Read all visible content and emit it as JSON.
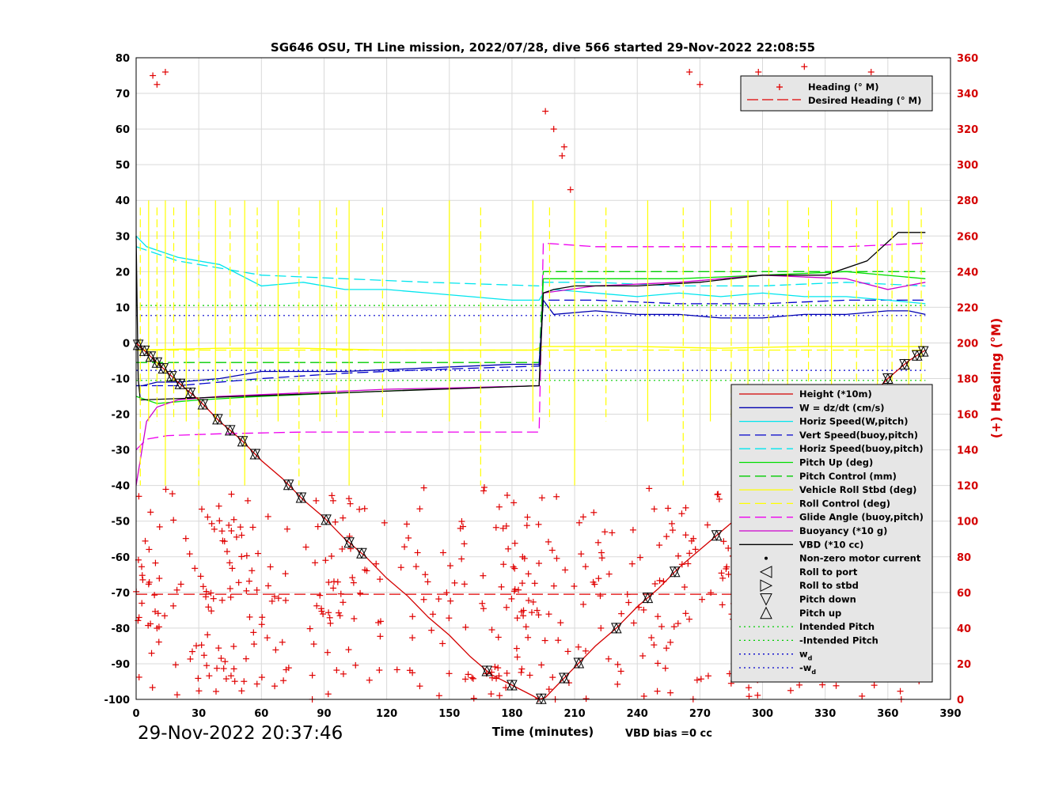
{
  "chart_data": {
    "type": "line",
    "title": "SG646 OSU, TH Line mission, 2022/07/28, dive 566 started 29-Nov-2022 22:08:55",
    "xlabel": "Time (minutes)",
    "ylabel_right": "(+) Heading (°M)",
    "footer_left": "29-Nov-2022 20:37:46",
    "footer_right": "VBD bias =0 cc",
    "xlim": [
      0,
      390
    ],
    "ylim": [
      -100,
      80
    ],
    "ylim_right": [
      0,
      360
    ],
    "grid": true,
    "x_ticks": [
      "0",
      "30",
      "60",
      "90",
      "120",
      "150",
      "180",
      "210",
      "240",
      "270",
      "300",
      "330",
      "360",
      "390"
    ],
    "y_ticks": [
      "80",
      "70",
      "60",
      "50",
      "40",
      "30",
      "20",
      "10",
      "0",
      "-10",
      "-20",
      "-30",
      "-40",
      "-50",
      "-60",
      "-70",
      "-80",
      "-90",
      "-100"
    ],
    "y_ticks_right": [
      "360",
      "340",
      "320",
      "300",
      "280",
      "260",
      "240",
      "220",
      "200",
      "180",
      "160",
      "140",
      "120",
      "100",
      "80",
      "60",
      "40",
      "20",
      "0"
    ],
    "colors": {
      "height": "#d40000",
      "w": "#0000b0",
      "horiz_w": "#00e5ee",
      "vert_buoy": "#0000cc",
      "horiz_buoy": "#00e5ee",
      "pitch": "#00dd00",
      "pitch_ctl": "#00cc00",
      "roll": "#ffff00",
      "roll_ctl": "#ffff00",
      "glide": "#ee00ee",
      "buoy": "#cc00cc",
      "vbd": "#000000",
      "heading": "#e00000"
    },
    "legend_top": {
      "placement": "top-right",
      "items": [
        "Heading (° M)",
        "Desired Heading (° M)"
      ]
    },
    "legend_main": {
      "placement": "bottom-right",
      "items": [
        "Height (*10m)",
        "W = dz/dt (cm/s)",
        "Horiz Speed(W,pitch)",
        "Vert Speed(buoy,pitch)",
        "Horiz Speed(buoy,pitch)",
        "Pitch Up (deg)",
        "Pitch Control (mm)",
        "Vehicle Roll Stbd (deg)",
        "Roll Control (deg)",
        "Glide Angle (buoy,pitch)",
        "Buoyancy (*10 g)",
        "VBD (*10 cc)",
        "Non-zero motor current",
        "Roll to port",
        "Roll to stbd",
        "Pitch down",
        "Pitch up",
        "Intended Pitch",
        "-Intended Pitch",
        "w_d",
        "-w_d"
      ],
      "wd_main": "w",
      "wd_sub": "d"
    },
    "series": [
      {
        "name": "Height (*10m)",
        "x": [
          0,
          10,
          20,
          30,
          40,
          50,
          60,
          70,
          80,
          90,
          100,
          110,
          120,
          130,
          140,
          150,
          160,
          170,
          180,
          190,
          193,
          196,
          200,
          210,
          220,
          230,
          240,
          250,
          260,
          270,
          280,
          290,
          300,
          310,
          320,
          330,
          340,
          350,
          360,
          370,
          378
        ],
        "values": [
          0,
          -5.5,
          -11,
          -16,
          -22,
          -27,
          -33,
          -38,
          -44,
          -49,
          -55,
          -60,
          -66,
          -71,
          -77,
          -82,
          -88,
          -93,
          -96,
          -99,
          -100,
          -99.5,
          -97,
          -91,
          -85,
          -80,
          -74,
          -69,
          -63,
          -58,
          -53,
          -48,
          -43,
          -37,
          -32,
          -27,
          -21,
          -16,
          -10,
          -5,
          -2
        ]
      },
      {
        "name": "W = dz/dt (cm/s)",
        "x": [
          0,
          3,
          10,
          20,
          40,
          60,
          80,
          100,
          120,
          140,
          160,
          180,
          193,
          195,
          200,
          220,
          240,
          260,
          280,
          300,
          320,
          340,
          360,
          370,
          378
        ],
        "values": [
          -12,
          -12,
          -11,
          -11,
          -10,
          -8,
          -8,
          -8,
          -7.5,
          -7,
          -6.5,
          -6,
          -6,
          12,
          8,
          9,
          8,
          8,
          7,
          7,
          8,
          8,
          9,
          9,
          8
        ]
      },
      {
        "name": "Horiz Speed(W,pitch)",
        "x": [
          0,
          5,
          20,
          40,
          60,
          80,
          100,
          120,
          140,
          160,
          180,
          193,
          195,
          200,
          220,
          240,
          260,
          280,
          300,
          320,
          340,
          360,
          378
        ],
        "values": [
          30,
          27,
          24,
          22,
          16,
          17,
          15,
          15,
          14,
          13,
          12,
          12,
          14,
          15,
          14,
          13,
          14,
          13,
          14,
          13,
          13,
          12,
          11
        ]
      },
      {
        "name": "Vert Speed(buoy,pitch)",
        "x": [
          0,
          20,
          60,
          100,
          140,
          193,
          195,
          220,
          260,
          300,
          340,
          378
        ],
        "values": [
          -12,
          -12,
          -10,
          -8.5,
          -7.5,
          -6.5,
          12,
          12,
          11,
          11,
          12,
          12
        ]
      },
      {
        "name": "Horiz Speed(buoy,pitch)",
        "x": [
          0,
          20,
          60,
          100,
          140,
          193,
          195,
          220,
          260,
          300,
          340,
          378
        ],
        "values": [
          27,
          23,
          19,
          18,
          17,
          16,
          17,
          17,
          16,
          16,
          17,
          16
        ]
      },
      {
        "name": "Pitch Up (deg)",
        "x": [
          0,
          10,
          30,
          60,
          100,
          140,
          193,
          195,
          220,
          260,
          300,
          340,
          378
        ],
        "values": [
          -15,
          -17,
          -16,
          -15,
          -14,
          -13,
          -12,
          18,
          18,
          18,
          19,
          20,
          18
        ]
      },
      {
        "name": "Pitch Control (mm)",
        "x": [
          0,
          193,
          195,
          378
        ],
        "values": [
          -5.5,
          -5.5,
          20,
          20
        ]
      },
      {
        "name": "Vehicle Roll Stbd (deg)",
        "x": [
          0,
          40,
          80,
          120,
          160,
          190,
          195,
          240,
          280,
          320,
          360,
          378
        ],
        "values": [
          -2,
          -1.5,
          -1.5,
          -2,
          -2,
          -2,
          -1,
          -1,
          -1.5,
          -1,
          -1,
          -1
        ]
      },
      {
        "name": "Roll Control (deg)",
        "x": [
          0,
          193,
          195,
          378
        ],
        "values": [
          -2,
          -2,
          -2,
          -2
        ]
      },
      {
        "name": "Glide Angle (buoy,pitch)",
        "x": [
          0,
          5,
          15,
          40,
          80,
          120,
          193,
          195,
          220,
          260,
          300,
          340,
          378
        ],
        "values": [
          -30,
          -27,
          -26,
          -25.5,
          -25,
          -25,
          -25,
          28,
          27,
          27,
          27,
          27,
          28
        ]
      },
      {
        "name": "Buoyancy (*10 g)",
        "x": [
          0,
          5,
          10,
          20,
          40,
          80,
          120,
          160,
          193,
          195,
          220,
          260,
          300,
          340,
          360,
          378
        ],
        "values": [
          -40,
          -22,
          -18,
          -16,
          -15,
          -14,
          -13,
          -12.5,
          -12,
          14,
          16,
          17,
          19,
          18,
          15,
          17
        ]
      },
      {
        "name": "VBD (*10 cc)",
        "x": [
          0,
          1,
          2,
          193,
          195,
          200,
          210,
          240,
          270,
          300,
          330,
          350,
          365,
          378
        ],
        "values": [
          30,
          -10,
          -16,
          -12,
          14,
          15,
          16,
          16,
          17,
          19,
          19,
          23,
          31,
          31
        ]
      },
      {
        "name": "Intended Pitch",
        "x": [
          0,
          378
        ],
        "values": [
          10.5,
          10.5
        ]
      },
      {
        "name": "-Intended Pitch",
        "x": [
          0,
          378
        ],
        "values": [
          -10.5,
          -10.5
        ]
      },
      {
        "name": "w_d",
        "x": [
          0,
          378
        ],
        "values": [
          7.7,
          7.7
        ]
      },
      {
        "name": "-w_d",
        "x": [
          0,
          378
        ],
        "values": [
          -7.7,
          -7.7
        ]
      },
      {
        "name": "Desired Heading (° M)",
        "x": [
          0,
          378
        ],
        "values_right": [
          59,
          59
        ]
      }
    ]
  }
}
